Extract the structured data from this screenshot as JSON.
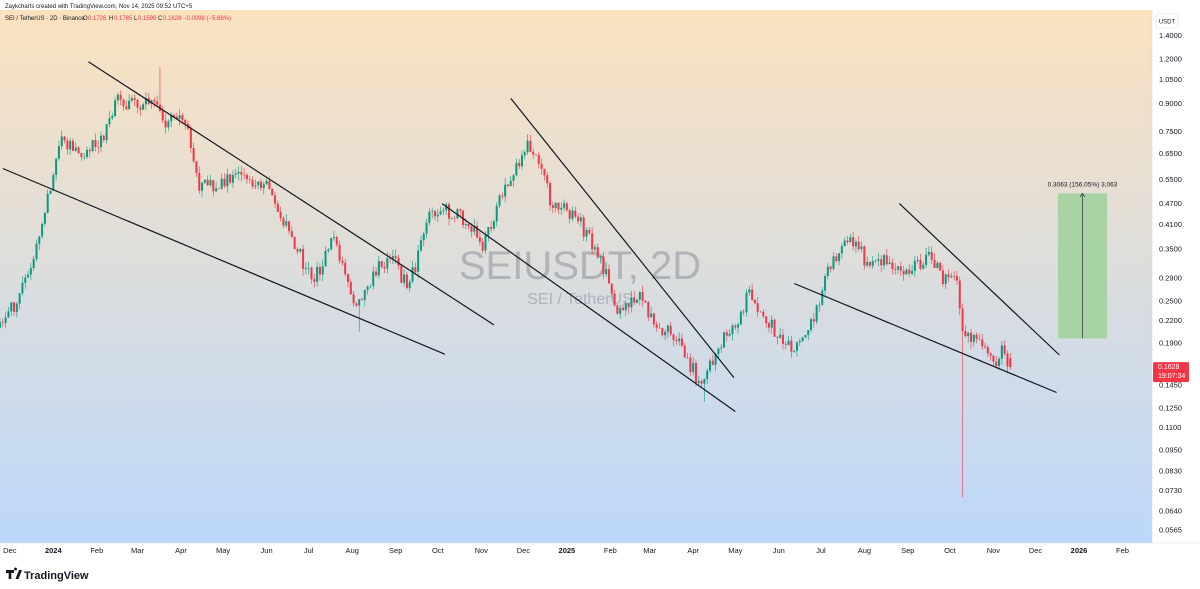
{
  "header": {
    "created_by": "Zaykcharts created with TradingView.com, Nov 14, 2025 09:52 UTC+5",
    "symbol_line": "SEI / TetherUS · 2D · Binance",
    "ohlc": [
      {
        "key": "O",
        "value": "0.1726"
      },
      {
        "key": "H",
        "value": "0.1785"
      },
      {
        "key": "L",
        "value": "0.1598"
      },
      {
        "key": "C",
        "value": "0.1628"
      }
    ],
    "change": "−0.0098 (−5.68%)"
  },
  "watermark": {
    "symbol": "SEIUSDT, 2D",
    "name": "SEI / TetherUS"
  },
  "brand": {
    "name": "TradingView"
  },
  "price_tag": {
    "value": "0.1628",
    "countdown": "19:07:34",
    "color": "#f23645"
  },
  "measure": {
    "label": "0.3063 (156.05%) 3,063"
  },
  "colors": {
    "up": "#089981",
    "down": "#f23645",
    "bg_top": "#fbe2bf",
    "bg_bottom": "#bcd8fb",
    "target_box": "#9fd19a"
  },
  "chart_data": {
    "type": "candlestick",
    "timeframe": "2D",
    "y_axis": {
      "unit": "USDT",
      "scale": "log",
      "range": [
        0.052,
        1.65
      ],
      "ticks": [
        "1.4000",
        "1.2000",
        "1.0500",
        "0.9000",
        "0.7500",
        "0.6500",
        "0.5500",
        "0.4700",
        "0.4100",
        "0.3500",
        "0.2900",
        "0.2500",
        "0.2200",
        "0.1900",
        "0.1450",
        "0.1250",
        "0.1100",
        "0.0950",
        "0.0830",
        "0.0730",
        "0.0640",
        "0.0565"
      ]
    },
    "x_axis": {
      "range": [
        "2023-11-24",
        "2026-02-22"
      ],
      "ticks": [
        {
          "label": "Dec",
          "date": "2023-12-01"
        },
        {
          "label": "2024",
          "date": "2024-01-01",
          "bold": true
        },
        {
          "label": "Feb",
          "date": "2024-02-01"
        },
        {
          "label": "Mar",
          "date": "2024-03-01"
        },
        {
          "label": "Apr",
          "date": "2024-04-01"
        },
        {
          "label": "May",
          "date": "2024-05-01"
        },
        {
          "label": "Jun",
          "date": "2024-06-01"
        },
        {
          "label": "Jul",
          "date": "2024-07-01"
        },
        {
          "label": "Aug",
          "date": "2024-08-01"
        },
        {
          "label": "Sep",
          "date": "2024-09-01"
        },
        {
          "label": "Oct",
          "date": "2024-10-01"
        },
        {
          "label": "Nov",
          "date": "2024-11-01"
        },
        {
          "label": "Dec",
          "date": "2024-12-01"
        },
        {
          "label": "2025",
          "date": "2025-01-01",
          "bold": true
        },
        {
          "label": "Feb",
          "date": "2025-02-01"
        },
        {
          "label": "Mar",
          "date": "2025-03-01"
        },
        {
          "label": "Apr",
          "date": "2025-04-01"
        },
        {
          "label": "May",
          "date": "2025-05-01"
        },
        {
          "label": "Jun",
          "date": "2025-06-01"
        },
        {
          "label": "Jul",
          "date": "2025-07-01"
        },
        {
          "label": "Aug",
          "date": "2025-08-01"
        },
        {
          "label": "Sep",
          "date": "2025-09-01"
        },
        {
          "label": "Oct",
          "date": "2025-10-01"
        },
        {
          "label": "Nov",
          "date": "2025-11-01"
        },
        {
          "label": "Dec",
          "date": "2025-12-01"
        },
        {
          "label": "2026",
          "date": "2026-01-01",
          "bold": true
        },
        {
          "label": "Feb",
          "date": "2026-02-01"
        }
      ]
    },
    "price_path": [
      {
        "date": "2023-11-24",
        "price": 0.21
      },
      {
        "date": "2023-12-08",
        "price": 0.25
      },
      {
        "date": "2023-12-20",
        "price": 0.34
      },
      {
        "date": "2024-01-02",
        "price": 0.55
      },
      {
        "date": "2024-01-10",
        "price": 0.72
      },
      {
        "date": "2024-01-20",
        "price": 0.64
      },
      {
        "date": "2024-02-05",
        "price": 0.7
      },
      {
        "date": "2024-02-18",
        "price": 0.92
      },
      {
        "date": "2024-03-05",
        "price": 0.88
      },
      {
        "date": "2024-03-12",
        "price": 0.95
      },
      {
        "date": "2024-03-22",
        "price": 0.8
      },
      {
        "date": "2024-04-05",
        "price": 0.83
      },
      {
        "date": "2024-04-16",
        "price": 0.52
      },
      {
        "date": "2024-05-01",
        "price": 0.54
      },
      {
        "date": "2024-05-20",
        "price": 0.56
      },
      {
        "date": "2024-06-05",
        "price": 0.52
      },
      {
        "date": "2024-06-25",
        "price": 0.35
      },
      {
        "date": "2024-07-06",
        "price": 0.28
      },
      {
        "date": "2024-07-22",
        "price": 0.38
      },
      {
        "date": "2024-08-05",
        "price": 0.23
      },
      {
        "date": "2024-08-20",
        "price": 0.31
      },
      {
        "date": "2024-09-02",
        "price": 0.32
      },
      {
        "date": "2024-09-12",
        "price": 0.27
      },
      {
        "date": "2024-09-28",
        "price": 0.44
      },
      {
        "date": "2024-10-10",
        "price": 0.45
      },
      {
        "date": "2024-10-22",
        "price": 0.42
      },
      {
        "date": "2024-11-05",
        "price": 0.36
      },
      {
        "date": "2024-11-22",
        "price": 0.55
      },
      {
        "date": "2024-12-05",
        "price": 0.68
      },
      {
        "date": "2024-12-12",
        "price": 0.66
      },
      {
        "date": "2024-12-22",
        "price": 0.48
      },
      {
        "date": "2025-01-10",
        "price": 0.43
      },
      {
        "date": "2025-01-28",
        "price": 0.32
      },
      {
        "date": "2025-02-08",
        "price": 0.23
      },
      {
        "date": "2025-02-22",
        "price": 0.26
      },
      {
        "date": "2025-03-08",
        "price": 0.21
      },
      {
        "date": "2025-03-22",
        "price": 0.2
      },
      {
        "date": "2025-04-08",
        "price": 0.145
      },
      {
        "date": "2025-04-22",
        "price": 0.19
      },
      {
        "date": "2025-05-05",
        "price": 0.21
      },
      {
        "date": "2025-05-12",
        "price": 0.26
      },
      {
        "date": "2025-05-26",
        "price": 0.22
      },
      {
        "date": "2025-06-12",
        "price": 0.18
      },
      {
        "date": "2025-06-25",
        "price": 0.21
      },
      {
        "date": "2025-07-10",
        "price": 0.32
      },
      {
        "date": "2025-07-25",
        "price": 0.38
      },
      {
        "date": "2025-08-05",
        "price": 0.32
      },
      {
        "date": "2025-08-20",
        "price": 0.33
      },
      {
        "date": "2025-09-02",
        "price": 0.3
      },
      {
        "date": "2025-09-18",
        "price": 0.33
      },
      {
        "date": "2025-09-28",
        "price": 0.29
      },
      {
        "date": "2025-10-08",
        "price": 0.285
      },
      {
        "date": "2025-10-12",
        "price": 0.21
      },
      {
        "date": "2025-10-24",
        "price": 0.19
      },
      {
        "date": "2025-11-04",
        "price": 0.17
      },
      {
        "date": "2025-11-10",
        "price": 0.18
      },
      {
        "date": "2025-11-14",
        "price": 0.1628
      }
    ],
    "notable_wicks": [
      {
        "date": "2024-03-16",
        "high": 1.14
      },
      {
        "date": "2024-08-05",
        "low": 0.205
      },
      {
        "date": "2025-04-08",
        "low": 0.13
      },
      {
        "date": "2025-10-10",
        "low": 0.07
      }
    ],
    "trendlines": [
      {
        "from": {
          "date": "2023-11-26",
          "price": 0.59
        },
        "to": {
          "date": "2024-10-06",
          "price": 0.177
        }
      },
      {
        "from": {
          "date": "2024-01-26",
          "price": 1.18
        },
        "to": {
          "date": "2024-11-10",
          "price": 0.214
        }
      },
      {
        "from": {
          "date": "2024-10-04",
          "price": 0.47
        },
        "to": {
          "date": "2025-05-01",
          "price": 0.122
        }
      },
      {
        "from": {
          "date": "2024-11-22",
          "price": 0.93
        },
        "to": {
          "date": "2025-04-30",
          "price": 0.152
        }
      },
      {
        "from": {
          "date": "2025-06-12",
          "price": 0.28
        },
        "to": {
          "date": "2025-12-16",
          "price": 0.138
        }
      },
      {
        "from": {
          "date": "2025-08-26",
          "price": 0.47
        },
        "to": {
          "date": "2025-12-18",
          "price": 0.176
        }
      }
    ],
    "target_box": {
      "from_date": "2025-12-17",
      "to_date": "2026-01-21",
      "low": 0.196,
      "high": 0.502
    },
    "last_close": 0.1628
  }
}
